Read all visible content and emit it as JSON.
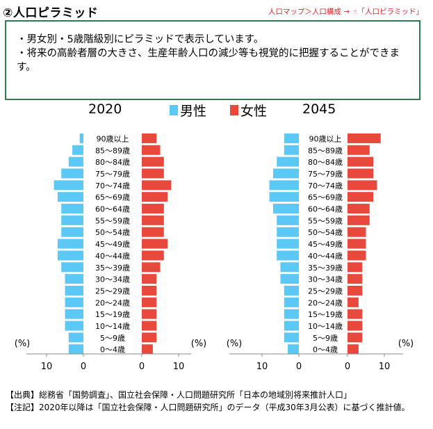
{
  "header": {
    "title": "②人口ピラミッド",
    "breadcrumb_path": "人口マップ＞人口構成",
    "breadcrumb_arrow": "→",
    "breadcrumb_target": "「人口ピラミッド」"
  },
  "info": {
    "line1": "・男女別・5歳階級別にピラミッドで表示しています。",
    "line2": "・将来の高齢者層の大きさ、生産年齢人口の減少等も視覚的に把握することができます。"
  },
  "legend": {
    "male_label": "男性",
    "female_label": "女性",
    "male_color": "#5bc8f5",
    "female_color": "#e8493c"
  },
  "footer": {
    "source": "【出典】総務省「国勢調査」、国立社会保障・人口問題研究所「日本の地域別将来推計人口」",
    "note": "【注記】2020年以降は「国立社会保障・人口問題研究所」のデータ（平成30年3月公表）に基づく推計値。"
  },
  "chart_data": [
    {
      "type": "bar",
      "title": "2020",
      "unit_label": "(%)",
      "categories": [
        "0〜4歳",
        "5〜9歳",
        "10〜14歳",
        "15〜19歳",
        "20〜24歳",
        "25〜29歳",
        "30〜34歳",
        "35〜39歳",
        "40〜44歳",
        "45〜49歳",
        "50〜54歳",
        "55〜59歳",
        "60〜64歳",
        "65〜69歳",
        "70〜74歳",
        "75〜79歳",
        "80〜84歳",
        "85〜89歳",
        "90歳以上"
      ],
      "series": [
        {
          "name": "男性",
          "values": [
            4,
            4,
            5,
            5,
            5,
            5,
            5,
            6,
            7,
            7,
            6,
            6,
            6,
            7,
            8,
            6,
            4,
            3,
            1
          ]
        },
        {
          "name": "女性",
          "values": [
            3,
            4,
            4,
            4,
            4,
            4,
            4,
            5,
            6,
            7,
            6,
            6,
            6,
            7,
            8,
            6,
            6,
            5,
            4
          ]
        }
      ],
      "xlim": [
        0,
        15
      ],
      "ticks": [
        0,
        10
      ]
    },
    {
      "type": "bar",
      "title": "2045",
      "unit_label": "(%)",
      "categories": [
        "0〜4歳",
        "5〜9歳",
        "10〜14歳",
        "15〜19歳",
        "20〜24歳",
        "25〜29歳",
        "30〜34歳",
        "35〜39歳",
        "40〜44歳",
        "45〜49歳",
        "50〜54歳",
        "55〜59歳",
        "60〜64歳",
        "65〜69歳",
        "70〜74歳",
        "75〜79歳",
        "80〜84歳",
        "85〜89歳",
        "90歳以上"
      ],
      "series": [
        {
          "name": "男性",
          "values": [
            3,
            4,
            4,
            4,
            4,
            4,
            5,
            5,
            6,
            6,
            6,
            6,
            7,
            8,
            8,
            7,
            6,
            4,
            4
          ]
        },
        {
          "name": "女性",
          "values": [
            3,
            4,
            4,
            4,
            3,
            4,
            4,
            4,
            5,
            5,
            5,
            6,
            6,
            7,
            8,
            7,
            7,
            6,
            9
          ]
        }
      ],
      "xlim": [
        0,
        15
      ],
      "ticks": [
        0,
        10
      ]
    }
  ]
}
